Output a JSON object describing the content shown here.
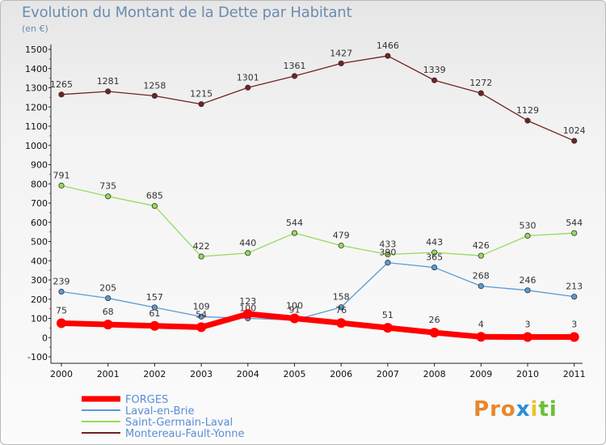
{
  "title": "Evolution du Montant de la Dette par Habitant",
  "subtitle": "(en €)",
  "logo": {
    "text": "Proxiti",
    "colors": [
      "#e8872d",
      "#e8872d",
      "#e8872d",
      "#2c8fd6",
      "#e8c52d",
      "#6cbf3a",
      "#6cbf3a"
    ]
  },
  "chart_data": {
    "type": "line",
    "title": "Evolution du Montant de la Dette par Habitant",
    "subtitle": "(en €)",
    "x": [
      "2000",
      "2001",
      "2002",
      "2003",
      "2004",
      "2005",
      "2006",
      "2007",
      "2008",
      "2009",
      "2010",
      "2011"
    ],
    "ylim": [
      -100,
      1500
    ],
    "yticks": [
      -100,
      0,
      100,
      200,
      300,
      400,
      500,
      600,
      700,
      800,
      900,
      1000,
      1100,
      1200,
      1300,
      1400,
      1500
    ],
    "grid": false,
    "legend": "bottom-left",
    "series": [
      {
        "name": "Montereau-Fault-Yonne",
        "color": "#722222",
        "values": [
          1265,
          1281,
          1258,
          1215,
          1301,
          1361,
          1427,
          1466,
          1339,
          1272,
          1129,
          1024
        ],
        "labels": [
          "1265",
          "1281",
          "1258",
          "1215",
          "1301",
          "1361",
          "1427",
          "1466",
          "1339",
          "1272",
          "1129",
          "1024"
        ]
      },
      {
        "name": "Saint-Germain-Laval",
        "color": "#96db5b",
        "values": [
          791,
          735,
          685,
          422,
          440,
          544,
          479,
          433,
          443,
          426,
          530,
          544
        ],
        "labels": [
          "791",
          "735",
          "685",
          "422",
          "440",
          "544",
          "479",
          "433",
          "443",
          "426",
          "530",
          "544"
        ]
      },
      {
        "name": "Laval-en-Brie",
        "color": "#5b9bd5",
        "values": [
          239,
          205,
          157,
          109,
          100,
          91,
          158,
          390,
          365,
          268,
          246,
          213
        ],
        "labels": [
          "239",
          "205",
          "157",
          "109",
          "100",
          "91",
          "158",
          "390",
          "365",
          "268",
          "246",
          "213"
        ]
      },
      {
        "name": "FORGES",
        "color": "#ff0000",
        "values": [
          75,
          68,
          61,
          54,
          123,
          100,
          76,
          51,
          26,
          4,
          3,
          3
        ],
        "labels": [
          "75",
          "68",
          "61",
          "54",
          "123",
          "100",
          "76",
          "51",
          "26",
          "4",
          "3",
          "3"
        ]
      }
    ],
    "legend_order": [
      "FORGES",
      "Laval-en-Brie",
      "Saint-Germain-Laval",
      "Montereau-Fault-Yonne"
    ]
  }
}
